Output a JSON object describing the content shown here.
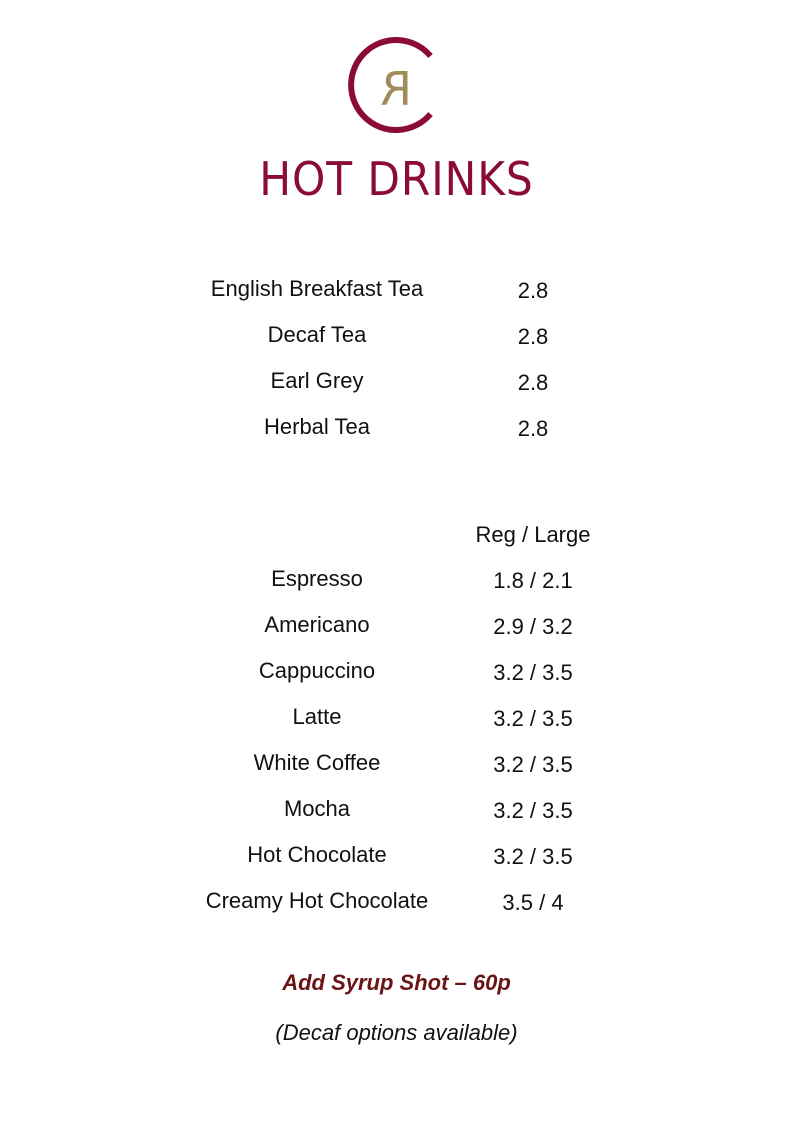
{
  "logo": {
    "letter": "R",
    "ring_color": "#8a0a38",
    "letter_color": "#a08c5a"
  },
  "title": "HOT DRINKS",
  "tea": [
    {
      "name": "English Breakfast Tea",
      "price": "2.8"
    },
    {
      "name": "Decaf Tea",
      "price": "2.8"
    },
    {
      "name": "Earl Grey",
      "price": "2.8"
    },
    {
      "name": "Herbal Tea",
      "price": "2.8"
    }
  ],
  "coffee_header": "Reg / Large",
  "coffee": [
    {
      "name": "Espresso",
      "price": "1.8 / 2.1"
    },
    {
      "name": "Americano",
      "price": "2.9 / 3.2"
    },
    {
      "name": "Cappuccino",
      "price": "3.2 / 3.5"
    },
    {
      "name": "Latte",
      "price": "3.2 / 3.5"
    },
    {
      "name": "White Coffee",
      "price": "3.2 / 3.5"
    },
    {
      "name": "Mocha",
      "price": "3.2 / 3.5"
    },
    {
      "name": "Hot Chocolate",
      "price": "3.2 / 3.5"
    },
    {
      "name": "Creamy Hot Chocolate",
      "price": "3.5 / 4"
    }
  ],
  "syrup_note": "Add Syrup Shot – 60p",
  "decaf_note": "(Decaf options available)"
}
